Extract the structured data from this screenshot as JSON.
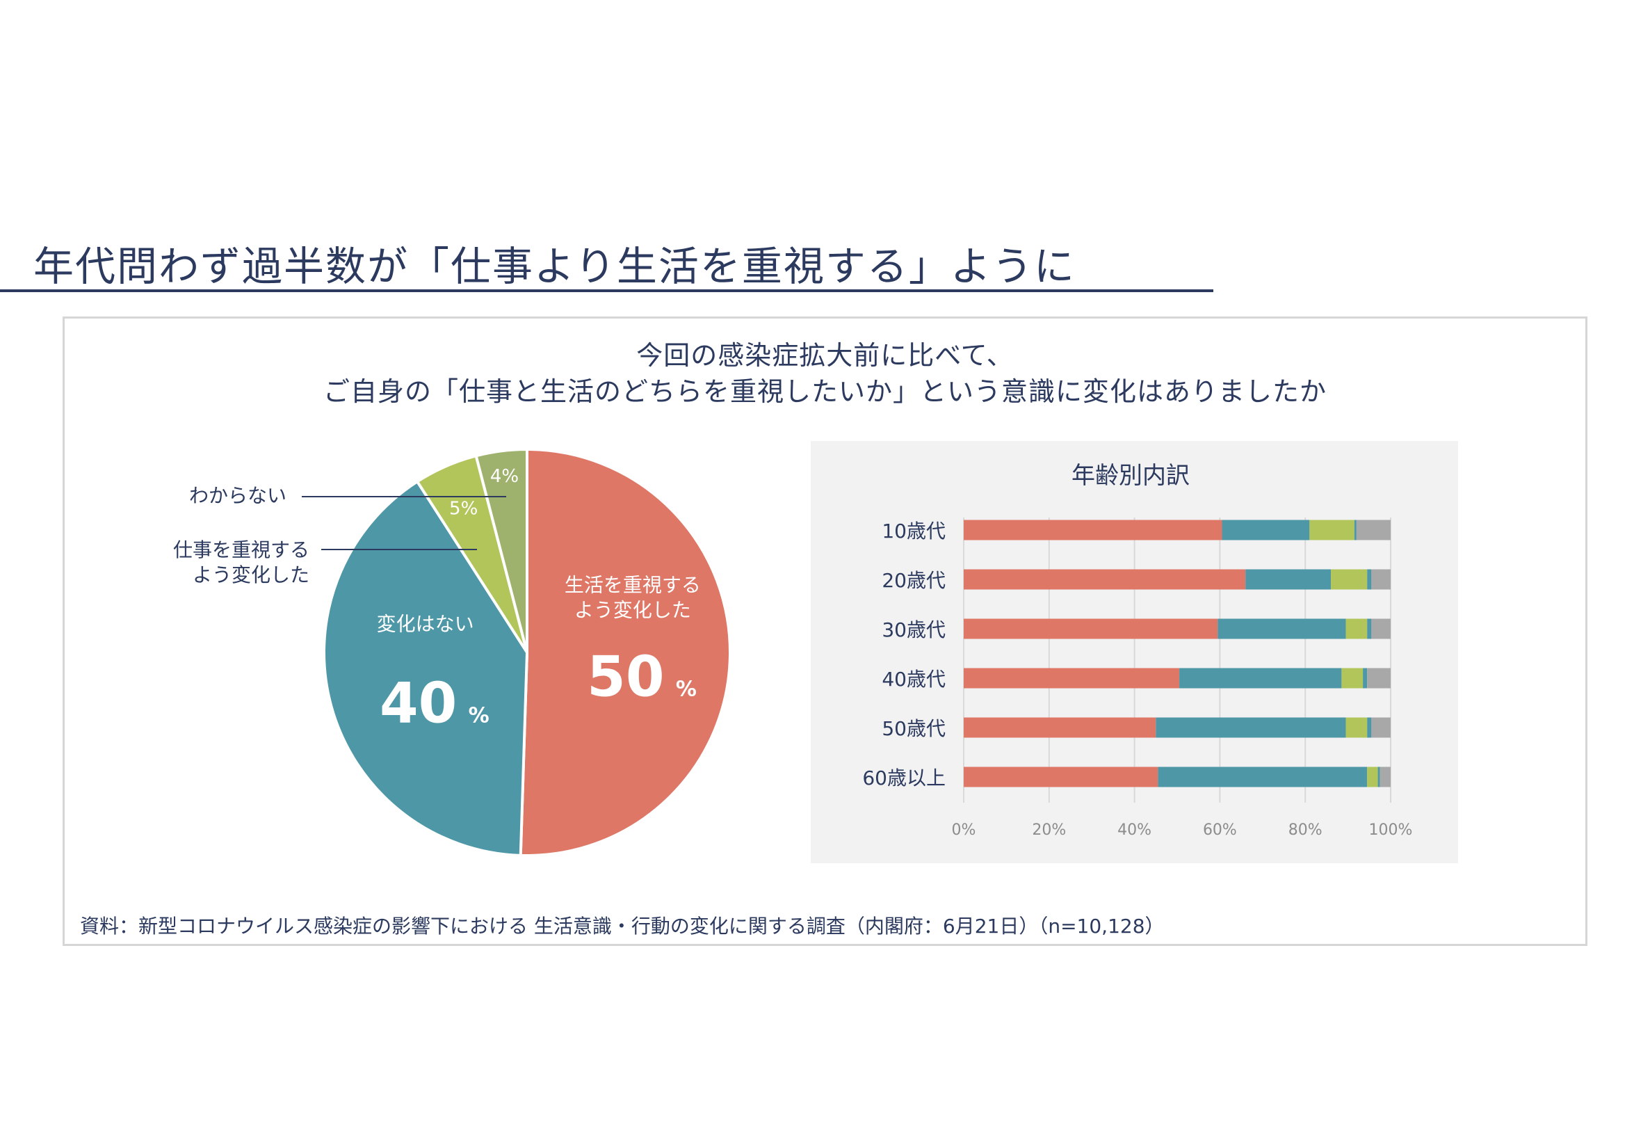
{
  "page": {
    "title": "年代問わず過半数が「仕事より生活を重視する」ように"
  },
  "question": {
    "line1": "今回の感染症拡大前に比べて、",
    "line2": "ご自身の「仕事と生活のどちらを重視したいか」という意識に変化はありましたか"
  },
  "source": "資料：新型コロナウイルス感染症の影響下における 生活意識・行動の変化に関する調査（内閣府：6月21日）（n=10,128）",
  "colors": {
    "life": "#de7766",
    "no_change": "#4e97a6",
    "work": "#b2c55b",
    "unknown": "#9fb26d",
    "bar_unknown": "#a8a8a8",
    "text": "#2b3a5e"
  },
  "chart_data": [
    {
      "type": "pie",
      "slices": [
        {
          "label": "生活を重視するよう変化した",
          "label_lines": [
            "生活を重視する",
            "よう変化した"
          ],
          "value": 50,
          "value_text": "50",
          "unit": "%",
          "color": "#de7766"
        },
        {
          "label": "変化はない",
          "label_lines": [
            "変化はない"
          ],
          "value": 40,
          "value_text": "40",
          "unit": "%",
          "color": "#4e97a6"
        },
        {
          "label": "仕事を重視するよう変化した",
          "label_lines": [
            "仕事を重視する",
            "よう変化した"
          ],
          "value": 5,
          "value_text": "5%",
          "unit": "",
          "color": "#b2c55b"
        },
        {
          "label": "わからない",
          "label_lines": [
            "わからない"
          ],
          "value": 4,
          "value_text": "4%",
          "unit": "",
          "color": "#9fb26d"
        }
      ]
    },
    {
      "type": "bar",
      "orientation": "horizontal",
      "stacked": "percent",
      "title": "年齢別内訳",
      "categories": [
        "10歳代",
        "20歳代",
        "30歳代",
        "40歳代",
        "50歳代",
        "60歳以上"
      ],
      "series": [
        {
          "key": "life",
          "color": "#de7766",
          "values": [
            60.5,
            66,
            59.5,
            50.5,
            45,
            45.5
          ]
        },
        {
          "key": "no_change",
          "color": "#4e97a6",
          "values": [
            20.5,
            20,
            30,
            38,
            44.5,
            49
          ]
        },
        {
          "key": "work",
          "color": "#b2c55b",
          "values": [
            10.5,
            8.5,
            5,
            5,
            5,
            2.5
          ]
        },
        {
          "key": "other",
          "color": "#4e97a6",
          "values": [
            0.5,
            1,
            1,
            1,
            1,
            0.5
          ]
        },
        {
          "key": "unknown",
          "color": "#a8a8a8",
          "values": [
            8,
            4.5,
            4.5,
            5.5,
            4.5,
            2.5
          ]
        }
      ],
      "xlim": [
        0,
        100
      ],
      "xticks": [
        "0%",
        "20%",
        "40%",
        "60%",
        "80%",
        "100%"
      ],
      "grid": true
    }
  ]
}
